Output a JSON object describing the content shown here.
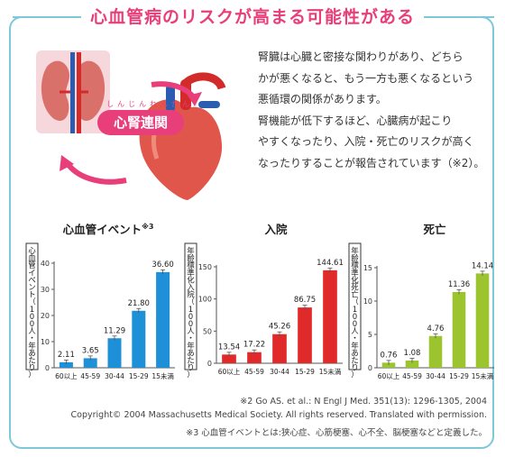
{
  "header": {
    "title": "心血管病のリスクが高まる可能性がある"
  },
  "badge": {
    "ruby": "しんじんれんかん",
    "label": "心腎連関"
  },
  "description": {
    "lines": [
      "腎臓は心臓と密接な関わりがあり、どちら",
      "かが悪くなると、もう一方も悪くなるという",
      "悪循環の関係があります。",
      "腎機能が低下するほど、心臓病が起こり",
      "やすくなったり、入院・死亡のリスクが高く",
      "なったりすることが報告されています（※2）。"
    ]
  },
  "colors": {
    "accent": "#e83e7a",
    "frame": "#7ec8d8",
    "blue": "#1e90d8",
    "red": "#e02a2a",
    "green": "#9cc42f"
  },
  "chart_data": [
    {
      "type": "bar",
      "title": "心血管イベント",
      "title_sup": "※3",
      "ylabel": "心血管イベント（100人・年あたり）",
      "categories": [
        "60以上",
        "45-59",
        "30-44",
        "15-29",
        "15未満"
      ],
      "values": [
        2.11,
        3.65,
        11.29,
        21.8,
        36.6
      ],
      "value_labels": [
        "2.11",
        "3.65",
        "11.29",
        "21.80",
        "36.60"
      ],
      "ylim": [
        0,
        40
      ],
      "yticks": [
        0,
        10,
        20,
        30,
        40
      ],
      "color": "#1e90d8"
    },
    {
      "type": "bar",
      "title": "入院",
      "title_sup": "",
      "ylabel": "年齢標準化入院（100人・年あたり）",
      "categories": [
        "60以上",
        "45-59",
        "30-44",
        "15-29",
        "15未満"
      ],
      "values": [
        13.54,
        17.22,
        45.26,
        86.75,
        144.61
      ],
      "value_labels": [
        "13.54",
        "17.22",
        "45.26",
        "86.75",
        "144.61"
      ],
      "ylim": [
        0,
        150
      ],
      "yticks": [
        0,
        50,
        100,
        150
      ],
      "color": "#e02a2a"
    },
    {
      "type": "bar",
      "title": "死亡",
      "title_sup": "",
      "ylabel": "年齢標準化死亡（100人・年あたり）",
      "categories": [
        "60以上",
        "45-59",
        "30-44",
        "15-29",
        "15未満"
      ],
      "values": [
        0.76,
        1.08,
        4.76,
        11.36,
        14.14
      ],
      "value_labels": [
        "0.76",
        "1.08",
        "4.76",
        "11.36",
        "14.14"
      ],
      "ylim": [
        0,
        15
      ],
      "yticks": [
        0,
        5,
        10,
        15
      ],
      "color": "#9cc42f"
    }
  ],
  "footnotes": {
    "ref": "※2 Go AS. et al.: N Engl J Med. 351(13): 1296-1305, 2004",
    "copyright": "Copyright© 2004 Massachusetts Medical Society. All rights reserved. Translated with permission.",
    "note3": "※3 心血管イベントとは:狭心症、心筋梗塞、心不全、脳梗塞などと定義した。"
  }
}
